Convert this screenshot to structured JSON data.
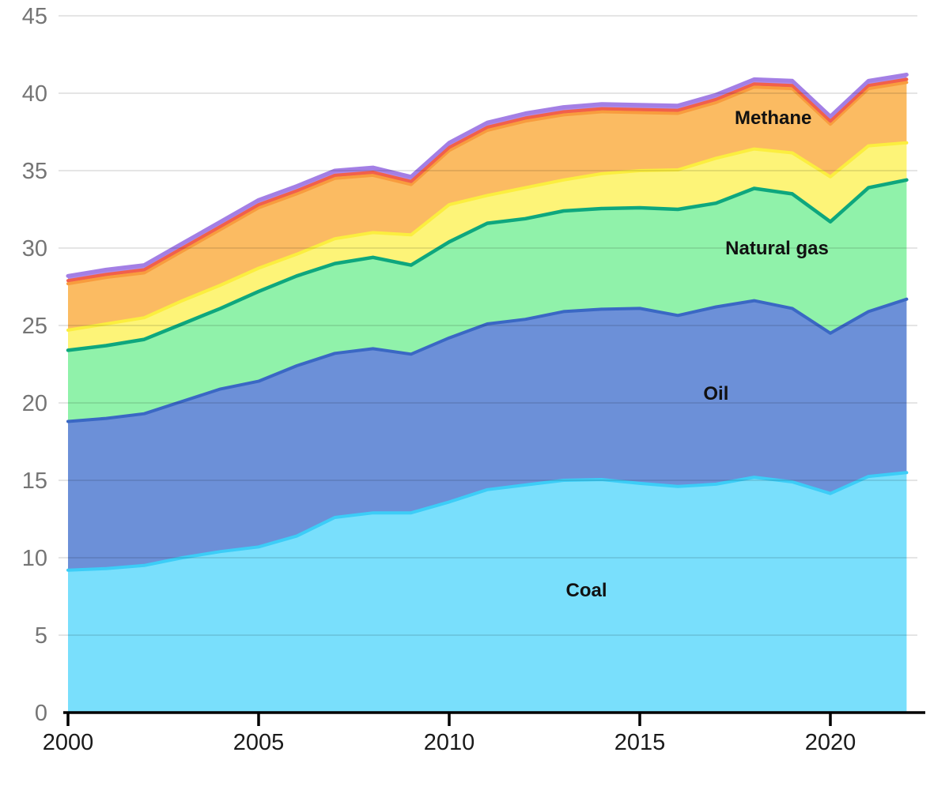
{
  "chart_data": {
    "type": "area",
    "stacked": true,
    "title": "",
    "xlabel": "",
    "ylabel": "",
    "grid": "horizontal",
    "legend_position": "inline-annotations",
    "xlim": [
      2000,
      2022
    ],
    "ylim": [
      0,
      45
    ],
    "x": [
      2000,
      2001,
      2002,
      2003,
      2004,
      2005,
      2006,
      2007,
      2008,
      2009,
      2010,
      2011,
      2012,
      2013,
      2014,
      2015,
      2016,
      2017,
      2018,
      2019,
      2020,
      2021,
      2022
    ],
    "x_ticks": [
      2000,
      2005,
      2010,
      2015,
      2020
    ],
    "y_ticks": [
      0,
      5,
      10,
      15,
      20,
      25,
      30,
      35,
      40,
      45
    ],
    "series": [
      {
        "id": "coal",
        "label": "Coal",
        "fill": "#79DFFC",
        "stroke": "#3CCDF7",
        "stroke_width": 4,
        "values": [
          9.2,
          9.3,
          9.5,
          10.0,
          10.4,
          10.7,
          11.4,
          12.6,
          12.9,
          12.9,
          13.6,
          14.4,
          14.7,
          15.0,
          15.05,
          14.8,
          14.6,
          14.75,
          15.2,
          14.9,
          14.15,
          15.25,
          15.5
        ]
      },
      {
        "id": "oil",
        "label": "Oil",
        "fill": "#6C90D8",
        "stroke": "#3A68C4",
        "stroke_width": 4,
        "values": [
          9.6,
          9.7,
          9.8,
          10.1,
          10.5,
          10.7,
          11.0,
          10.6,
          10.6,
          10.25,
          10.6,
          10.7,
          10.7,
          10.9,
          11.0,
          11.3,
          11.05,
          11.45,
          11.4,
          11.2,
          10.35,
          10.65,
          11.2
        ]
      },
      {
        "id": "natural-gas",
        "label": "Natural gas",
        "fill": "#90F2AA",
        "stroke": "#0EA77E",
        "stroke_width": 4.5,
        "values": [
          4.6,
          4.7,
          4.8,
          5.0,
          5.2,
          5.8,
          5.8,
          5.8,
          5.9,
          5.75,
          6.2,
          6.5,
          6.5,
          6.5,
          6.5,
          6.5,
          6.85,
          6.7,
          7.25,
          7.4,
          7.2,
          8.0,
          7.7
        ]
      },
      {
        "id": "yellow-band",
        "label": "",
        "fill": "#FDF478",
        "stroke": "#FBEE3F",
        "stroke_width": 4,
        "values": [
          1.3,
          1.4,
          1.4,
          1.5,
          1.5,
          1.5,
          1.4,
          1.6,
          1.6,
          1.95,
          2.4,
          1.8,
          2.0,
          2.0,
          2.25,
          2.4,
          2.55,
          2.9,
          2.55,
          2.65,
          2.9,
          2.7,
          2.4
        ]
      },
      {
        "id": "methane",
        "label": "Methane",
        "fill": "#FBBB62",
        "stroke": "#F89C3E",
        "stroke_width": 4,
        "values": [
          3.0,
          3.0,
          2.9,
          3.2,
          3.6,
          3.9,
          3.9,
          3.9,
          3.7,
          3.25,
          3.5,
          4.2,
          4.3,
          4.2,
          4.0,
          3.75,
          3.65,
          3.6,
          4.0,
          4.15,
          3.4,
          3.7,
          3.9
        ]
      },
      {
        "id": "red-band",
        "label": "",
        "fill": "#F2604A",
        "stroke": "#F2604A",
        "stroke_width": 4,
        "values": [
          0.2,
          0.2,
          0.2,
          0.2,
          0.2,
          0.2,
          0.2,
          0.2,
          0.2,
          0.2,
          0.2,
          0.2,
          0.2,
          0.2,
          0.2,
          0.2,
          0.2,
          0.2,
          0.2,
          0.2,
          0.2,
          0.2,
          0.2
        ]
      },
      {
        "id": "purple-band",
        "label": "",
        "fill": "#AE8BE8",
        "stroke": "#A37FE5",
        "stroke_width": 5,
        "values": [
          0.3,
          0.3,
          0.3,
          0.3,
          0.3,
          0.3,
          0.3,
          0.3,
          0.3,
          0.3,
          0.3,
          0.3,
          0.3,
          0.3,
          0.3,
          0.3,
          0.3,
          0.3,
          0.3,
          0.3,
          0.3,
          0.3,
          0.3
        ]
      }
    ],
    "annotations": [
      {
        "text": "Methane",
        "year": 2018.5,
        "value": 38.0
      },
      {
        "text": "Natural gas",
        "year": 2018.6,
        "value": 29.6
      },
      {
        "text": "Oil",
        "year": 2017.0,
        "value": 20.2
      },
      {
        "text": "Coal",
        "year": 2013.6,
        "value": 7.5
      }
    ]
  },
  "layout_colors": {
    "background": "#ffffff",
    "gridline": "rgba(0,0,0,0.10)",
    "axis_line": "#000000",
    "ytick_color": "#757575",
    "xtick_color": "#1a1a1a",
    "annotation_color": "#111111"
  }
}
